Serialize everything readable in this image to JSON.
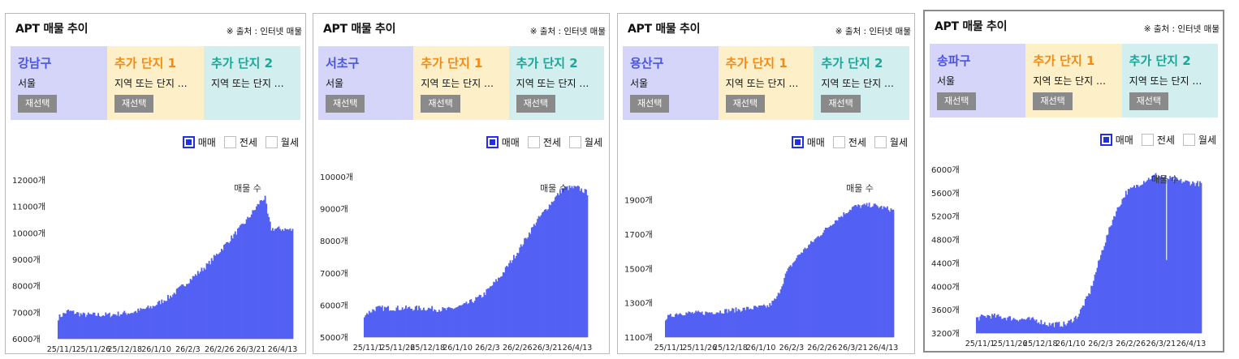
{
  "common": {
    "title": "APT 매물 추이",
    "source": "※ 출처 : 인터넷 매물",
    "extra1_name": "추가 단지 1",
    "extra2_name": "추가 단지 2",
    "extra_sub": "지역 또는 단지 …",
    "city": "서울",
    "reselect_label": "재선택",
    "legend": {
      "sale": "매매",
      "jeonse": "전세",
      "monthly": "월세"
    },
    "series_label": "매물 수",
    "x_ticks": [
      "25/11/1",
      "25/11/26",
      "25/12/18",
      "26/1/10",
      "26/2/3",
      "26/2/26",
      "26/3/21",
      "26/4/13"
    ],
    "colors": {
      "bar": "#5360f4",
      "district": "#4a55e0",
      "extra1": "#f08c16",
      "extra2": "#1aa79a"
    }
  },
  "panels": [
    {
      "district": "강남구"
    },
    {
      "district": "서초구"
    },
    {
      "district": "용산구"
    },
    {
      "district": "송파구"
    }
  ],
  "chart_data": [
    {
      "type": "bar",
      "title": "APT 매물 추이 - 강남구",
      "series_name": "매물 수",
      "x_ticks": [
        "25/11/1",
        "25/11/26",
        "25/12/18",
        "26/1/10",
        "26/2/3",
        "26/2/26",
        "26/3/21",
        "26/4/13"
      ],
      "y_ticks": [
        6000,
        7000,
        8000,
        9000,
        10000,
        11000,
        12000
      ],
      "y_tick_labels": [
        "6000개",
        "7000개",
        "8000개",
        "9000개",
        "10000개",
        "11000개",
        "12000개"
      ],
      "ylim": [
        6000,
        12000
      ],
      "anchors": [
        [
          0,
          6800
        ],
        [
          8,
          7050
        ],
        [
          20,
          6900
        ],
        [
          40,
          6900
        ],
        [
          60,
          7000
        ],
        [
          75,
          7200
        ],
        [
          90,
          7600
        ],
        [
          105,
          8200
        ],
        [
          120,
          8800
        ],
        [
          135,
          9600
        ],
        [
          150,
          10400
        ],
        [
          158,
          10900
        ],
        [
          163,
          11250
        ],
        [
          166,
          11300
        ],
        [
          168,
          10700
        ],
        [
          171,
          10150
        ],
        [
          180,
          10150
        ],
        [
          188,
          10100
        ]
      ]
    },
    {
      "type": "bar",
      "title": "APT 매물 추이 - 서초구",
      "series_name": "매물 수",
      "x_ticks": [
        "25/11/1",
        "25/11/26",
        "25/12/18",
        "26/1/10",
        "26/2/3",
        "26/2/26",
        "26/3/21",
        "26/4/13"
      ],
      "y_ticks": [
        5000,
        6000,
        7000,
        8000,
        9000,
        10000
      ],
      "y_tick_labels": [
        "5000개",
        "6000개",
        "7000개",
        "8000개",
        "9000개",
        "10000개"
      ],
      "ylim": [
        5000,
        10000
      ],
      "anchors": [
        [
          0,
          5700
        ],
        [
          10,
          5900
        ],
        [
          30,
          5900
        ],
        [
          50,
          5900
        ],
        [
          70,
          5850
        ],
        [
          85,
          6000
        ],
        [
          100,
          6300
        ],
        [
          115,
          6900
        ],
        [
          130,
          7700
        ],
        [
          145,
          8600
        ],
        [
          160,
          9300
        ],
        [
          168,
          9650
        ],
        [
          180,
          9650
        ],
        [
          188,
          9500
        ]
      ]
    },
    {
      "type": "bar",
      "title": "APT 매물 추이 - 용산구",
      "series_name": "매물 수",
      "x_ticks": [
        "25/11/1",
        "25/11/26",
        "25/12/18",
        "26/1/10",
        "26/2/3",
        "26/2/26",
        "26/3/21",
        "26/4/13"
      ],
      "y_ticks": [
        1100,
        1300,
        1500,
        1700,
        1900
      ],
      "y_tick_labels": [
        "1100개",
        "1300개",
        "1500개",
        "1700개",
        "1900개"
      ],
      "ylim": [
        1100,
        1950
      ],
      "anchors": [
        [
          0,
          1210
        ],
        [
          10,
          1240
        ],
        [
          30,
          1240
        ],
        [
          60,
          1260
        ],
        [
          85,
          1280
        ],
        [
          92,
          1330
        ],
        [
          100,
          1480
        ],
        [
          110,
          1580
        ],
        [
          125,
          1680
        ],
        [
          140,
          1780
        ],
        [
          155,
          1860
        ],
        [
          170,
          1870
        ],
        [
          188,
          1840
        ]
      ]
    },
    {
      "type": "bar",
      "title": "APT 매물 추이 - 송파구",
      "series_name": "매물 수",
      "x_ticks": [
        "25/11/1",
        "25/11/26",
        "25/12/18",
        "26/1/10",
        "26/2/3",
        "26/2/26",
        "26/3/21",
        "26/4/13"
      ],
      "y_ticks": [
        3200,
        3600,
        4000,
        4400,
        4800,
        5200,
        5600,
        6000
      ],
      "y_tick_labels": [
        "3200개",
        "3600개",
        "4000개",
        "4400개",
        "4800개",
        "5200개",
        "5600개",
        "6000개"
      ],
      "ylim": [
        3200,
        6000
      ],
      "anchors": [
        [
          0,
          3450
        ],
        [
          10,
          3500
        ],
        [
          30,
          3450
        ],
        [
          50,
          3420
        ],
        [
          60,
          3350
        ],
        [
          75,
          3350
        ],
        [
          85,
          3500
        ],
        [
          95,
          3900
        ],
        [
          105,
          4600
        ],
        [
          115,
          5200
        ],
        [
          125,
          5600
        ],
        [
          140,
          5800
        ],
        [
          150,
          5900
        ],
        [
          160,
          5850
        ],
        [
          170,
          5800
        ],
        [
          188,
          5750
        ]
      ],
      "dip": {
        "index": 159,
        "value": 4450
      }
    }
  ]
}
